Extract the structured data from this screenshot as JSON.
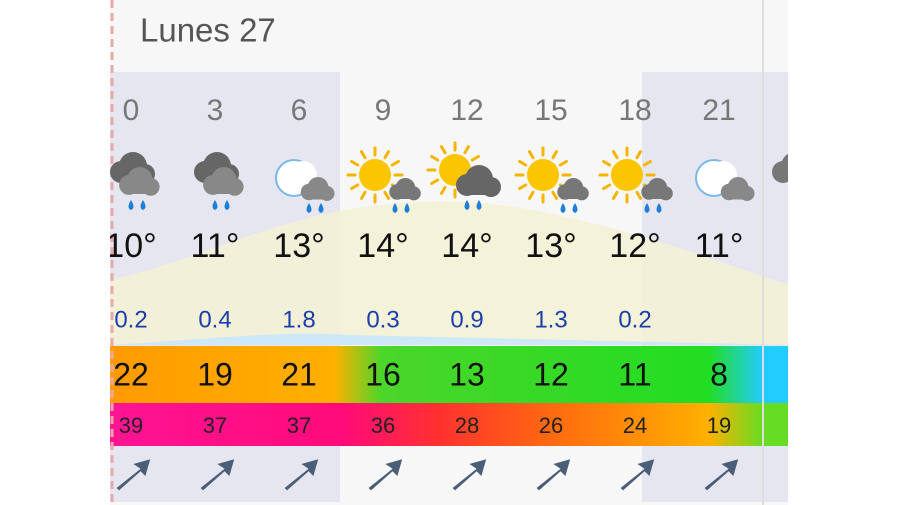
{
  "day": "Lunes 27",
  "columns": [
    {
      "hour": "0",
      "temp": "10°",
      "precip": "0.2",
      "wind": "22",
      "gust": "39"
    },
    {
      "hour": "3",
      "temp": "11°",
      "precip": "0.4",
      "wind": "19",
      "gust": "37"
    },
    {
      "hour": "6",
      "temp": "13°",
      "precip": "1.8",
      "wind": "21",
      "gust": "37"
    },
    {
      "hour": "9",
      "temp": "14°",
      "precip": "0.3",
      "wind": "16",
      "gust": "36"
    },
    {
      "hour": "12",
      "temp": "14°",
      "precip": "0.9",
      "wind": "13",
      "gust": "28"
    },
    {
      "hour": "15",
      "temp": "13°",
      "precip": "1.3",
      "wind": "12",
      "gust": "26"
    },
    {
      "hour": "18",
      "temp": "12°",
      "precip": "0.2",
      "wind": "11",
      "gust": "24"
    },
    {
      "hour": "21",
      "temp": "11°",
      "wind": "8",
      "gust": "19"
    }
  ]
}
